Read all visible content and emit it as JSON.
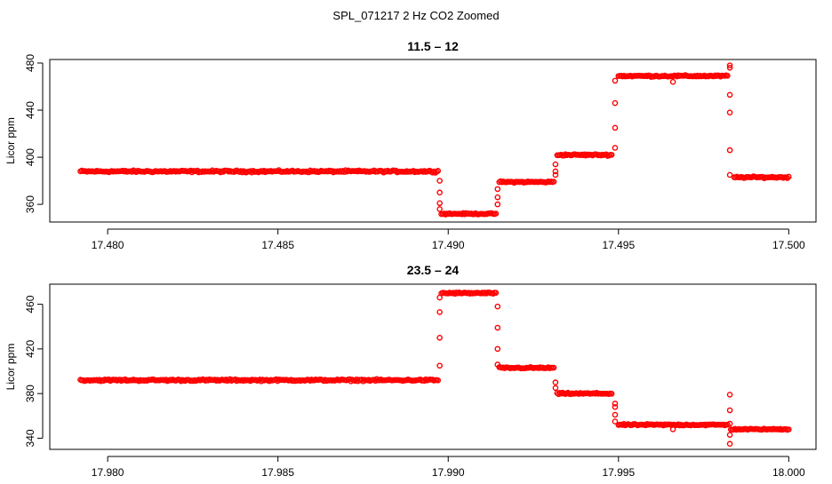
{
  "figure_title": "SPL_071217  2 Hz CO2 Zoomed",
  "point_color": "#ff0000",
  "chart_data": [
    {
      "type": "scatter",
      "title": "11.5 – 12",
      "ylabel": "Licor ppm",
      "xlabel": "",
      "xlim": [
        17.4783,
        17.5008
      ],
      "ylim": [
        345,
        483
      ],
      "xticks": [
        17.48,
        17.485,
        17.49,
        17.495,
        17.5
      ],
      "xtick_labels": [
        "17.480",
        "17.485",
        "17.490",
        "17.495",
        "17.500"
      ],
      "yticks": [
        360,
        400,
        440,
        480
      ],
      "ytick_labels": [
        "360",
        "400",
        "440",
        "480"
      ],
      "grid": false,
      "segments": [
        {
          "x": [
            17.4792,
            17.4897
          ],
          "y": 388,
          "noise": 1.2
        },
        {
          "x": [
            17.4898,
            17.4914
          ],
          "y": 352,
          "noise": 0.8
        },
        {
          "x": [
            17.4915,
            17.4931
          ],
          "y": 379,
          "noise": 0.9
        },
        {
          "x": [
            17.4932,
            17.4948
          ],
          "y": 402,
          "noise": 1.0
        },
        {
          "x": [
            17.495,
            17.4982
          ],
          "y": 469,
          "noise": 1.0
        },
        {
          "x": [
            17.4984,
            17.5
          ],
          "y": 383,
          "noise": 1.0
        }
      ],
      "transitions": [
        {
          "x": 17.48975,
          "y": [
            380,
            370,
            361,
            356
          ]
        },
        {
          "x": 17.49145,
          "y": [
            360,
            366,
            373
          ]
        },
        {
          "x": 17.49315,
          "y": [
            385,
            388,
            394
          ]
        },
        {
          "x": 17.4949,
          "y": [
            408,
            425,
            446,
            465
          ]
        },
        {
          "x": 17.49827,
          "y": [
            476,
            478,
            453,
            438,
            406,
            385
          ]
        }
      ],
      "outliers": [
        {
          "x": 17.4966,
          "y": 464
        }
      ]
    },
    {
      "type": "scatter",
      "title": "23.5 – 24",
      "ylabel": "Licor ppm",
      "xlabel": "",
      "xlim": [
        17.9783,
        18.0008
      ],
      "ylim": [
        330,
        478
      ],
      "xticks": [
        17.98,
        17.985,
        17.99,
        17.995,
        18.0
      ],
      "xtick_labels": [
        "17.980",
        "17.985",
        "17.990",
        "17.995",
        "18.000"
      ],
      "yticks": [
        340,
        380,
        420,
        460
      ],
      "ytick_labels": [
        "340",
        "380",
        "420",
        "460"
      ],
      "grid": false,
      "segments": [
        {
          "x": [
            17.9792,
            17.9897
          ],
          "y": 392,
          "noise": 1.2
        },
        {
          "x": [
            17.9898,
            17.9914
          ],
          "y": 470,
          "noise": 1.0
        },
        {
          "x": [
            17.9915,
            17.9931
          ],
          "y": 403,
          "noise": 1.0
        },
        {
          "x": [
            17.9932,
            17.9948
          ],
          "y": 380,
          "noise": 1.0
        },
        {
          "x": [
            17.995,
            17.9982
          ],
          "y": 352,
          "noise": 1.0
        },
        {
          "x": [
            17.9983,
            18.0
          ],
          "y": 348,
          "noise": 0.8
        }
      ],
      "transitions": [
        {
          "x": 17.98975,
          "y": [
            405,
            430,
            453,
            466
          ]
        },
        {
          "x": 17.99145,
          "y": [
            458,
            439,
            420,
            406
          ]
        },
        {
          "x": 17.99315,
          "y": [
            385,
            390
          ]
        },
        {
          "x": 17.9949,
          "y": [
            371,
            368,
            361,
            355
          ]
        },
        {
          "x": 17.99827,
          "y": [
            379,
            365,
            353,
            343,
            335
          ]
        }
      ],
      "outliers": [
        {
          "x": 17.9966,
          "y": 348
        }
      ]
    }
  ]
}
